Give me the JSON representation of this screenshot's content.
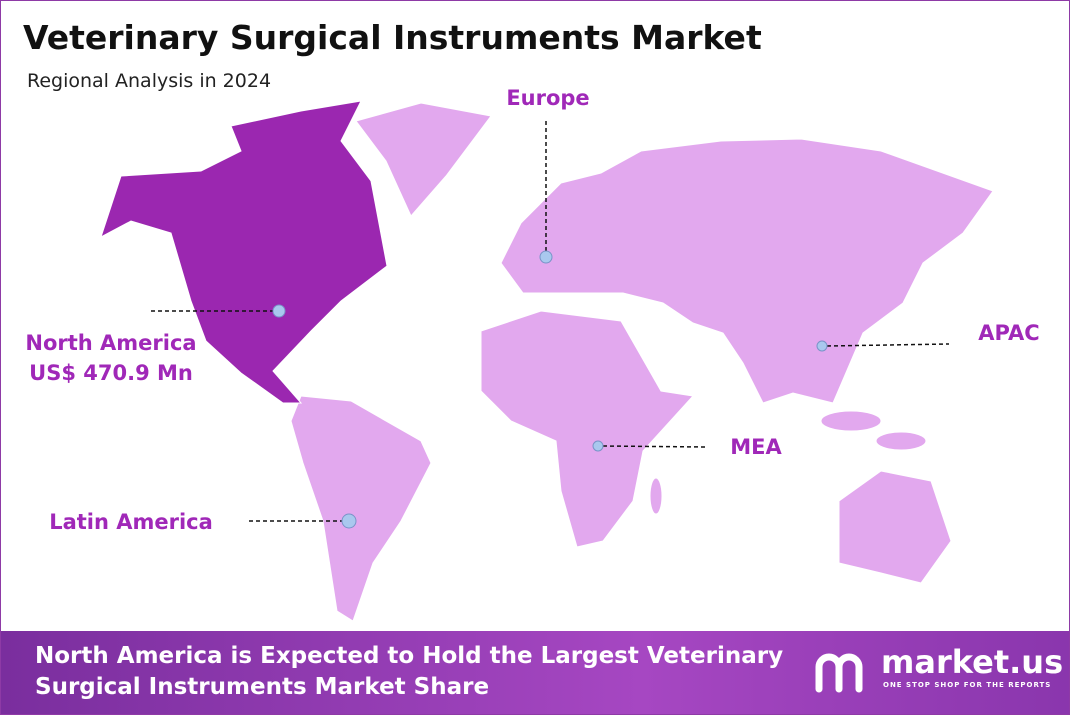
{
  "header": {
    "title": "Veterinary Surgical Instruments Market",
    "subtitle": "Regional Analysis in 2024"
  },
  "regions": [
    {
      "name": "North America",
      "value": "US$ 470.9 Mn"
    },
    {
      "name": "Europe"
    },
    {
      "name": "APAC"
    },
    {
      "name": "MEA"
    },
    {
      "name": "Latin America"
    }
  ],
  "footer": {
    "text": "North America is Expected to Hold the Largest Veterinary Surgical Instruments Market Share",
    "logo": "market.us",
    "tagline": "ONE STOP SHOP FOR THE REPORTS"
  }
}
